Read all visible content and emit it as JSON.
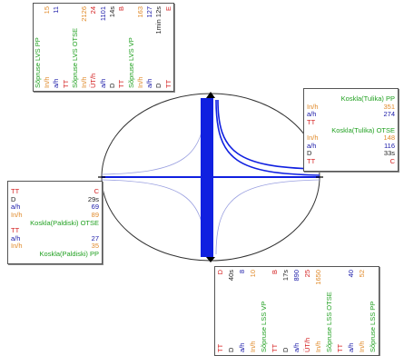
{
  "colors": {
    "red": "#d42020",
    "blue": "#1a1aa8",
    "orange": "#e08a2a",
    "green": "#20a020",
    "black": "#222222",
    "flow": "#1020e0",
    "flow_light": "#9aa0e0"
  },
  "panel_right": {
    "rows": [
      {
        "kind": "header",
        "text": "Koskla(Tulika) PP",
        "color": "green"
      },
      {
        "kind": "row",
        "label": "In/h",
        "value": "351",
        "color": "orange"
      },
      {
        "kind": "row",
        "label": "a/h",
        "value": "274",
        "color": "blue"
      },
      {
        "kind": "row",
        "label": "TT",
        "value": "",
        "color": "red"
      },
      {
        "kind": "header",
        "text": "Koskla(Tulika) OTSE",
        "color": "green"
      },
      {
        "kind": "row",
        "label": "In/h",
        "value": "148",
        "color": "orange"
      },
      {
        "kind": "row",
        "label": "a/h",
        "value": "116",
        "color": "blue"
      },
      {
        "kind": "row",
        "label": "D",
        "value": "33s",
        "color": "black"
      },
      {
        "kind": "row",
        "label": "TT",
        "value": "C",
        "color": "red"
      }
    ]
  },
  "panel_left": {
    "rows": [
      {
        "kind": "row",
        "label": "TT",
        "value": "C",
        "color": "red"
      },
      {
        "kind": "row",
        "label": "D",
        "value": "29s",
        "color": "black"
      },
      {
        "kind": "row",
        "label": "a/h",
        "value": "69",
        "color": "blue"
      },
      {
        "kind": "row",
        "label": "In/h",
        "value": "89",
        "color": "orange"
      },
      {
        "kind": "header",
        "text": "Koskla(Paldiski) OTSE",
        "color": "green"
      },
      {
        "kind": "row",
        "label": "TT",
        "value": "",
        "color": "red"
      },
      {
        "kind": "row",
        "label": "a/h",
        "value": "27",
        "color": "blue"
      },
      {
        "kind": "row",
        "label": "In/h",
        "value": "35",
        "color": "orange"
      },
      {
        "kind": "header",
        "text": "Koskla(Paldiski) PP",
        "color": "green"
      }
    ]
  },
  "panel_top": {
    "rows": [
      {
        "kind": "header",
        "text": "Sõpruse LVS PP",
        "color": "green"
      },
      {
        "kind": "row",
        "label": "In/h",
        "value": "15",
        "color": "orange"
      },
      {
        "kind": "row",
        "label": "a/h",
        "value": "11",
        "color": "blue"
      },
      {
        "kind": "row",
        "label": "TT",
        "value": "",
        "color": "red"
      },
      {
        "kind": "header",
        "text": "Sõpruse LVS OTSE",
        "color": "green"
      },
      {
        "kind": "row",
        "label": "In/h",
        "value": "2126",
        "color": "orange"
      },
      {
        "kind": "row",
        "label": "ÜT/h",
        "value": "24",
        "color": "red"
      },
      {
        "kind": "row",
        "label": "a/h",
        "value": "1101",
        "color": "blue"
      },
      {
        "kind": "row",
        "label": "D",
        "value": "14s",
        "color": "black"
      },
      {
        "kind": "row",
        "label": "TT",
        "value": "B",
        "color": "red"
      },
      {
        "kind": "header",
        "text": "Sõpruse LVS VP",
        "color": "green"
      },
      {
        "kind": "row",
        "label": "In/h",
        "value": "163",
        "color": "orange"
      },
      {
        "kind": "row",
        "label": "a/h",
        "value": "127",
        "color": "blue"
      },
      {
        "kind": "row",
        "label": "D",
        "value": "1min 12s",
        "color": "black"
      },
      {
        "kind": "row",
        "label": "TT",
        "value": "E",
        "color": "red"
      }
    ]
  },
  "panel_bottom": {
    "rows": [
      {
        "kind": "row",
        "label": "TT",
        "value": "D",
        "color": "red"
      },
      {
        "kind": "row",
        "label": "D",
        "value": "40s",
        "color": "black"
      },
      {
        "kind": "row",
        "label": "a/h",
        "value": "8",
        "color": "blue"
      },
      {
        "kind": "row",
        "label": "In/h",
        "value": "10",
        "color": "orange"
      },
      {
        "kind": "header",
        "text": "Sõpruse LSS VP",
        "color": "green"
      },
      {
        "kind": "row",
        "label": "TT",
        "value": "B",
        "color": "red"
      },
      {
        "kind": "row",
        "label": "D",
        "value": "17s",
        "color": "black"
      },
      {
        "kind": "row",
        "label": "a/h",
        "value": "890",
        "color": "blue"
      },
      {
        "kind": "row",
        "label": "ÜT/h",
        "value": "25",
        "color": "red"
      },
      {
        "kind": "row",
        "label": "In/h",
        "value": "1650",
        "color": "orange"
      },
      {
        "kind": "header",
        "text": "Sõpruse LSS OTSE",
        "color": "green"
      },
      {
        "kind": "row",
        "label": "TT",
        "value": "",
        "color": "red"
      },
      {
        "kind": "row",
        "label": "a/h",
        "value": "40",
        "color": "blue"
      },
      {
        "kind": "row",
        "label": "In/h",
        "value": "52",
        "color": "orange"
      },
      {
        "kind": "header",
        "text": "Sõpruse LSS PP",
        "color": "green"
      }
    ]
  }
}
